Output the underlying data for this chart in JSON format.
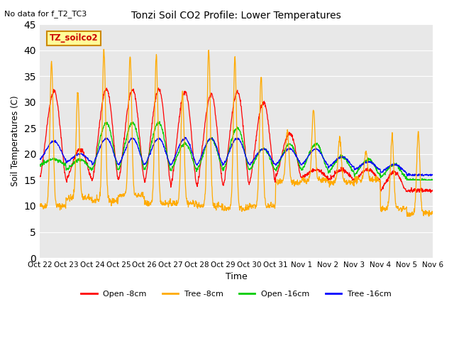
{
  "title": "Tonzi Soil CO2 Profile: Lower Temperatures",
  "subtitle": "No data for f_T2_TC3",
  "xlabel": "Time",
  "ylabel": "Soil Temperatures (C)",
  "ylim": [
    0,
    45
  ],
  "yticks": [
    0,
    5,
    10,
    15,
    20,
    25,
    30,
    35,
    40,
    45
  ],
  "x_tick_labels": [
    "Oct 22",
    "Oct 23",
    "Oct 24",
    "Oct 25",
    "Oct 26",
    "Oct 27",
    "Oct 28",
    "Oct 29",
    "Oct 30",
    "Oct 31",
    "Nov 1",
    "Nov 2",
    "Nov 3",
    "Nov 4",
    "Nov 5",
    "Nov 6"
  ],
  "legend_entries": [
    "Open -8cm",
    "Tree -8cm",
    "Open -16cm",
    "Tree -16cm"
  ],
  "legend_colors": [
    "#ff0000",
    "#ffaa00",
    "#00cc00",
    "#0000ff"
  ],
  "plot_bg_color": "#e8e8e8",
  "fig_bg_color": "#ffffff",
  "annotation_box_text": "TZ_soilco2",
  "annotation_box_color": "#ffff99",
  "annotation_box_edge_color": "#cc8800",
  "annotation_text_color": "#cc0000",
  "grid_color": "#ffffff"
}
